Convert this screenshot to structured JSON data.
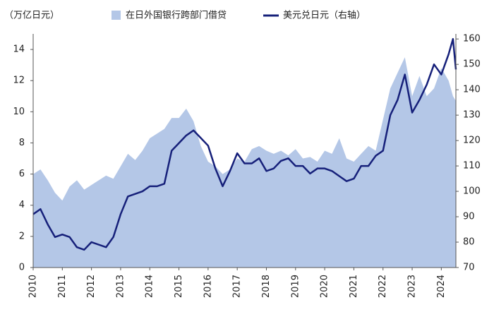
{
  "chart_data": {
    "type": "area-line",
    "y_axis_label": "（万亿日元）",
    "x": [
      2010,
      2010.25,
      2010.5,
      2010.75,
      2011,
      2011.25,
      2011.5,
      2011.75,
      2012,
      2012.25,
      2012.5,
      2012.75,
      2013,
      2013.25,
      2013.5,
      2013.75,
      2014,
      2014.25,
      2014.5,
      2014.75,
      2015,
      2015.25,
      2015.5,
      2015.75,
      2016,
      2016.25,
      2016.5,
      2016.75,
      2017,
      2017.25,
      2017.5,
      2017.75,
      2018,
      2018.25,
      2018.5,
      2018.75,
      2019,
      2019.25,
      2019.5,
      2019.75,
      2020,
      2020.25,
      2020.5,
      2020.75,
      2021,
      2021.25,
      2021.5,
      2021.75,
      2022,
      2022.25,
      2022.5,
      2022.75,
      2023,
      2023.25,
      2023.5,
      2023.75,
      2024,
      2024.25,
      2024.4,
      2024.5
    ],
    "series": [
      {
        "name": "在日外国银行跨部门借贷",
        "kind": "area",
        "color": "#b4c7e7",
        "values": [
          6.0,
          6.3,
          5.6,
          4.8,
          4.3,
          5.2,
          5.6,
          5.0,
          5.3,
          5.6,
          5.9,
          5.7,
          6.5,
          7.3,
          6.9,
          7.5,
          8.3,
          8.6,
          8.9,
          9.6,
          9.6,
          10.2,
          9.4,
          7.8,
          6.8,
          6.5,
          6.0,
          6.3,
          7.0,
          6.8,
          7.6,
          7.8,
          7.5,
          7.3,
          7.5,
          7.2,
          7.6,
          7.0,
          7.1,
          6.8,
          7.5,
          7.3,
          8.3,
          7.0,
          6.8,
          7.3,
          7.8,
          7.5,
          9.5,
          11.5,
          12.5,
          13.5,
          11.0,
          12.3,
          11.0,
          11.5,
          12.8,
          12.0,
          11.0,
          10.7
        ]
      },
      {
        "name": "美元兑日元（右轴）",
        "kind": "line",
        "axis": "y2",
        "color": "#16207a",
        "values": [
          91,
          93,
          87,
          82,
          83,
          82,
          78,
          77,
          80,
          79,
          78,
          82,
          91,
          98,
          99,
          100,
          102,
          102,
          103,
          116,
          119,
          122,
          124,
          121,
          118,
          109,
          102,
          108,
          115,
          111,
          111,
          113,
          108,
          109,
          112,
          113,
          110,
          110,
          107,
          109,
          109,
          108,
          106,
          104,
          105,
          110,
          110,
          114,
          116,
          130,
          136,
          146,
          131,
          136,
          142,
          150,
          146,
          154,
          160,
          148
        ]
      }
    ],
    "xlim": [
      2010,
      2024.5
    ],
    "xticks": [
      2010,
      2011,
      2012,
      2013,
      2014,
      2015,
      2016,
      2017,
      2018,
      2019,
      2020,
      2021,
      2022,
      2023,
      2024
    ],
    "ylim": [
      0,
      15
    ],
    "yticks": [
      0,
      2,
      4,
      6,
      8,
      10,
      12,
      14
    ],
    "y2lim": [
      70,
      162
    ],
    "y2ticks": [
      70,
      80,
      90,
      100,
      110,
      120,
      130,
      140,
      150,
      160
    ],
    "legend": "top"
  }
}
